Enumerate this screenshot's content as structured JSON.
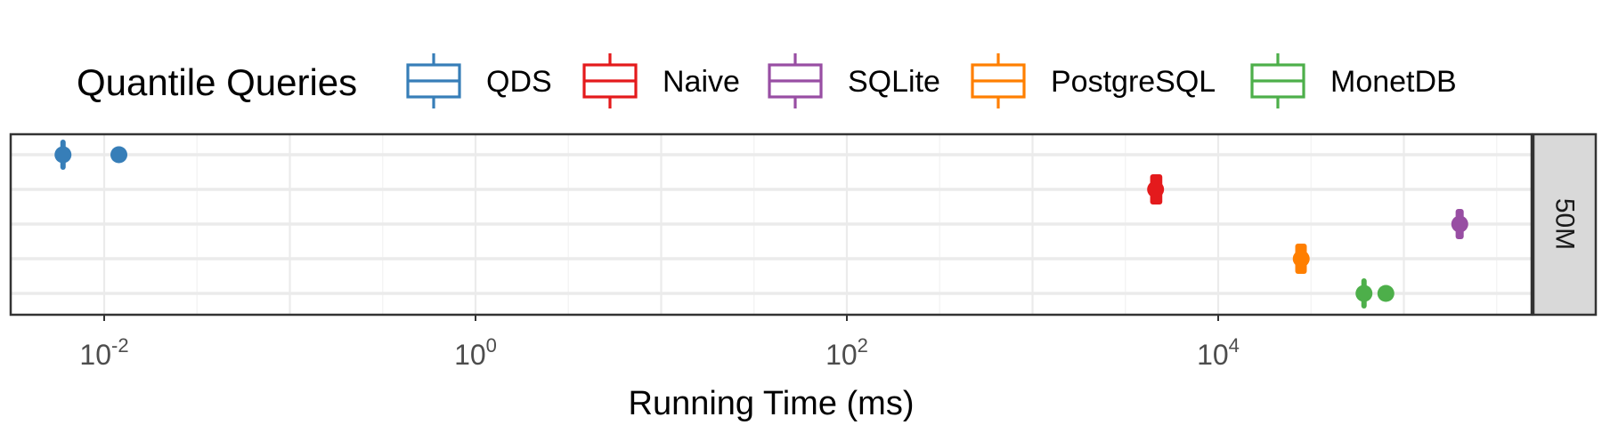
{
  "chart_data": {
    "type": "box",
    "title": "",
    "xlabel": "Running Time (ms)",
    "ylabel": "",
    "x_scale": "log10",
    "xlim": [
      0.003,
      400000
    ],
    "x_ticks": [
      {
        "value": 0.01,
        "base": "10",
        "exp": "-2"
      },
      {
        "value": 1,
        "base": "10",
        "exp": "0"
      },
      {
        "value": 100,
        "base": "10",
        "exp": "2"
      },
      {
        "value": 10000,
        "base": "10",
        "exp": "4"
      }
    ],
    "legend": {
      "title": "Quantile Queries",
      "position": "top"
    },
    "facet_label": "50M",
    "grid": true,
    "series": [
      {
        "name": "QDS",
        "color": "#377EB8",
        "q1": 0.006,
        "median": 0.006,
        "q3": 0.006,
        "outlier": 0.012
      },
      {
        "name": "Naive",
        "color": "#E41A1C",
        "q1": 4300,
        "median": 4600,
        "q3": 5000
      },
      {
        "name": "SQLite",
        "color": "#984EA3",
        "q1": 190000,
        "median": 200000,
        "q3": 210000
      },
      {
        "name": "PostgreSQL",
        "color": "#FF7F00",
        "q1": 26000,
        "median": 28000,
        "q3": 30000
      },
      {
        "name": "MonetDB",
        "color": "#4DAF4A",
        "q1": 60000,
        "median": 61000,
        "q3": 62000,
        "outlier": 80000
      }
    ]
  }
}
